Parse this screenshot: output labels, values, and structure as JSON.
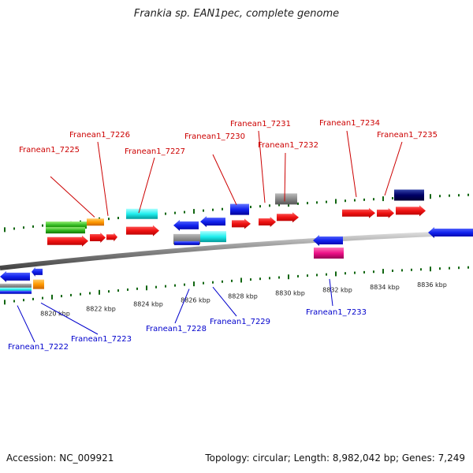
{
  "header": {
    "title": "Frankia sp. EAN1pec, complete genome"
  },
  "footer": {
    "accession": "Accession: NC_009921",
    "summary": "Topology: circular; Length: 8,982,042 bp; Genes: 7,249"
  },
  "colors": {
    "forward_label": "#cc0000",
    "reverse_label": "#0000cc",
    "gene_red": "#ee1111",
    "gene_blue": "#1122ee",
    "gene_cyan": "#22eeee",
    "gene_green": "#33bb22",
    "gene_orange": "#ff9900",
    "gene_gray": "#888888",
    "gene_navy": "#000066",
    "gene_magenta": "#ee1188",
    "tick_green": "#116611",
    "backbone": "#888888"
  },
  "axis_ticks": [
    "8820 kbp",
    "8822 kbp",
    "8824 kbp",
    "8826 kbp",
    "8828 kbp",
    "8830 kbp",
    "8832 kbp",
    "8834 kbp",
    "8836 kbp"
  ],
  "forward_labels": [
    "Franean1_7225",
    "Franean1_7226",
    "Franean1_7227",
    "Franean1_7230",
    "Franean1_7231",
    "Franean1_7232",
    "Franean1_7234",
    "Franean1_7235"
  ],
  "reverse_labels": [
    "Franean1_7222",
    "Franean1_7223",
    "Franean1_7228",
    "Franean1_7229",
    "Franean1_7233"
  ]
}
